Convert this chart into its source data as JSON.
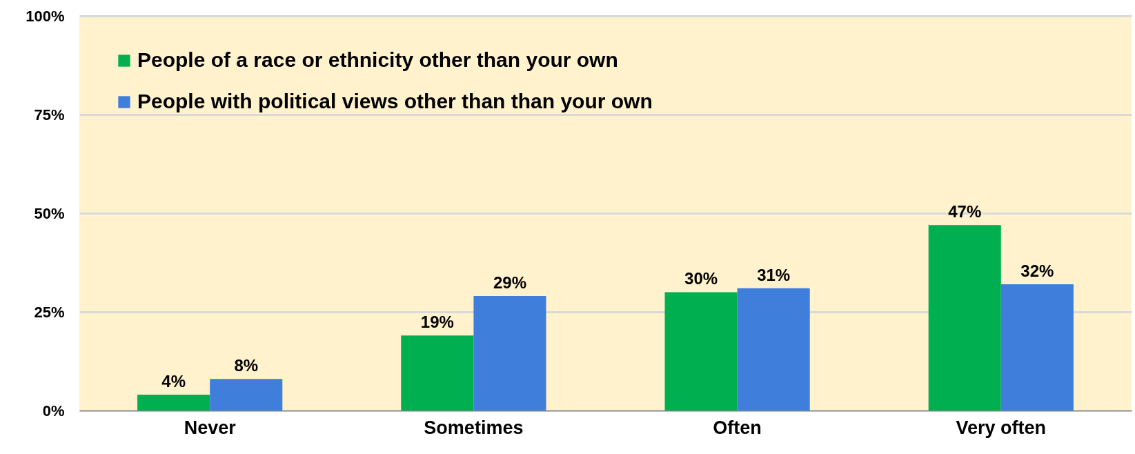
{
  "chart_data": {
    "type": "bar",
    "categories": [
      "Never",
      "Sometimes",
      "Often",
      "Very often"
    ],
    "series": [
      {
        "name": "People of a race or ethnicity other than your own",
        "color": "#00b050",
        "values": [
          4,
          19,
          30,
          47
        ],
        "value_labels": [
          "4%",
          "19%",
          "30%",
          "47%"
        ]
      },
      {
        "name": "People with political views other than than your own",
        "color": "#3f7fdb",
        "values": [
          8,
          29,
          31,
          32
        ],
        "value_labels": [
          "8%",
          "29%",
          "31%",
          "32%"
        ]
      }
    ],
    "ylim": [
      0,
      100
    ],
    "yticks": [
      {
        "value": 0,
        "label": "0%"
      },
      {
        "value": 25,
        "label": "25%"
      },
      {
        "value": 50,
        "label": "50%"
      },
      {
        "value": 75,
        "label": "75%"
      },
      {
        "value": 100,
        "label": "100%"
      }
    ],
    "grid": "y",
    "legend": "top left"
  }
}
